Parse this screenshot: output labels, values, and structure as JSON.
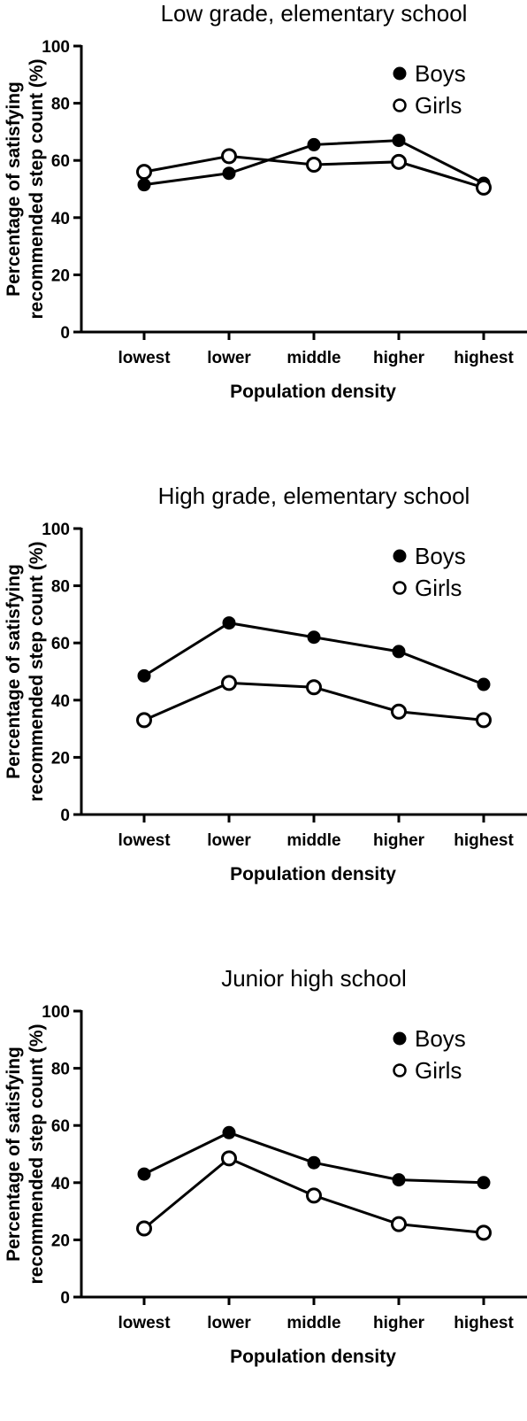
{
  "chart_data": [
    {
      "type": "line",
      "title": "Low grade, elementary school",
      "xlabel": "Population density",
      "ylabel": [
        "Percentage of satisfying",
        "recommended step count (%)"
      ],
      "categories": [
        "lowest",
        "lower",
        "middle",
        "higher",
        "highest"
      ],
      "ylim": [
        0,
        100
      ],
      "yticks": [
        0,
        20,
        40,
        60,
        80,
        100
      ],
      "legend_position": "top-right",
      "grid": false,
      "series": [
        {
          "name": "Boys",
          "marker": "filled-circle",
          "values": [
            51.5,
            55.5,
            65.5,
            67,
            52
          ]
        },
        {
          "name": "Girls",
          "marker": "open-circle",
          "values": [
            56,
            61.5,
            58.5,
            59.5,
            50.5
          ]
        }
      ]
    },
    {
      "type": "line",
      "title": "High grade, elementary school",
      "xlabel": "Population density",
      "ylabel": [
        "Percentage of satisfying",
        "recommended step count (%)"
      ],
      "categories": [
        "lowest",
        "lower",
        "middle",
        "higher",
        "highest"
      ],
      "ylim": [
        0,
        100
      ],
      "yticks": [
        0,
        20,
        40,
        60,
        80,
        100
      ],
      "legend_position": "top-right",
      "grid": false,
      "series": [
        {
          "name": "Boys",
          "marker": "filled-circle",
          "values": [
            48.5,
            67,
            62,
            57,
            45.5
          ]
        },
        {
          "name": "Girls",
          "marker": "open-circle",
          "values": [
            33,
            46,
            44.5,
            36,
            33
          ]
        }
      ]
    },
    {
      "type": "line",
      "title": "Junior high school",
      "xlabel": "Population density",
      "ylabel": [
        "Percentage of satisfying",
        "recommended step count (%)"
      ],
      "categories": [
        "lowest",
        "lower",
        "middle",
        "higher",
        "highest"
      ],
      "ylim": [
        0,
        100
      ],
      "yticks": [
        0,
        20,
        40,
        60,
        80,
        100
      ],
      "legend_position": "top-right",
      "grid": false,
      "series": [
        {
          "name": "Boys",
          "marker": "filled-circle",
          "values": [
            43,
            57.5,
            47,
            41,
            40
          ]
        },
        {
          "name": "Girls",
          "marker": "open-circle",
          "values": [
            24,
            48.5,
            35.5,
            25.5,
            22.5
          ]
        }
      ]
    }
  ]
}
